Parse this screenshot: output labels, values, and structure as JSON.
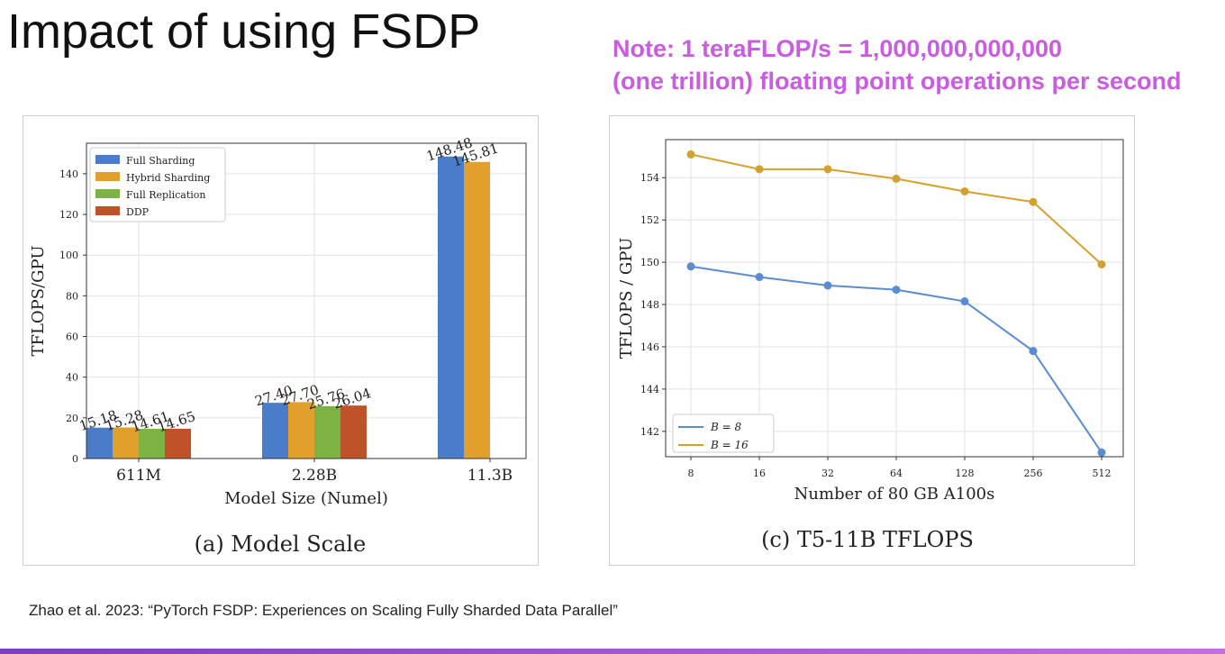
{
  "slide": {
    "title": "Impact of using FSDP",
    "note_line1": "Note: 1 teraFLOP/s = 1,000,000,000,000",
    "note_line2": "(one trillion) floating point operations per second",
    "note_color": "#c95ce0",
    "citation": "Zhao et al. 2023: “PyTorch FSDP: Experiences on Scaling Fully Sharded Data Parallel”",
    "bar_gradient_start": "#7b3fbf",
    "bar_gradient_end": "#c46fe0"
  },
  "chart_data": [
    {
      "type": "bar",
      "caption": "(a) Model Scale",
      "xlabel": "Model Size (Numel)",
      "ylabel": "TFLOPS/GPU",
      "ylim": [
        0,
        155
      ],
      "yticks": [
        0,
        20,
        40,
        60,
        80,
        100,
        120,
        140
      ],
      "grid": true,
      "legend_position": "top-left",
      "categories": [
        "611M",
        "2.28B",
        "11.3B"
      ],
      "series": [
        {
          "name": "Full Sharding",
          "color": "#4a7cc9",
          "values": [
            15.18,
            27.4,
            148.48
          ],
          "labels": [
            "15.18",
            "27.40",
            "148.48"
          ]
        },
        {
          "name": "Hybrid Sharding",
          "color": "#e1a02b",
          "values": [
            15.28,
            27.7,
            145.81
          ],
          "labels": [
            "15.28",
            "27.70",
            "145.81"
          ]
        },
        {
          "name": "Full Replication",
          "color": "#7cb342",
          "values": [
            14.61,
            25.76,
            null
          ],
          "labels": [
            "14.61",
            "25.76",
            ""
          ]
        },
        {
          "name": "DDP",
          "color": "#c0522a",
          "values": [
            14.65,
            26.04,
            null
          ],
          "labels": [
            "14.65",
            "26.04",
            ""
          ]
        }
      ]
    },
    {
      "type": "line",
      "caption": "(c) T5-11B TFLOPS",
      "xlabel": "Number of 80 GB A100s",
      "ylabel": "TFLOPS / GPU",
      "x": [
        8,
        16,
        32,
        64,
        128,
        256,
        512
      ],
      "xtick_labels": [
        "8",
        "16",
        "32",
        "64",
        "128",
        "256",
        "512"
      ],
      "x_scale": "log2",
      "ylim": [
        140.8,
        155.8
      ],
      "yticks": [
        142,
        144,
        146,
        148,
        150,
        152,
        154
      ],
      "grid": true,
      "legend_position": "bottom-left",
      "series": [
        {
          "name": "B = 8",
          "color": "#5b8bd0",
          "values": [
            149.8,
            149.3,
            148.9,
            148.7,
            148.15,
            145.8,
            141.0
          ]
        },
        {
          "name": "B = 16",
          "color": "#d3a12e",
          "values": [
            155.1,
            154.4,
            154.4,
            153.95,
            153.35,
            152.85,
            149.9
          ]
        }
      ]
    }
  ]
}
